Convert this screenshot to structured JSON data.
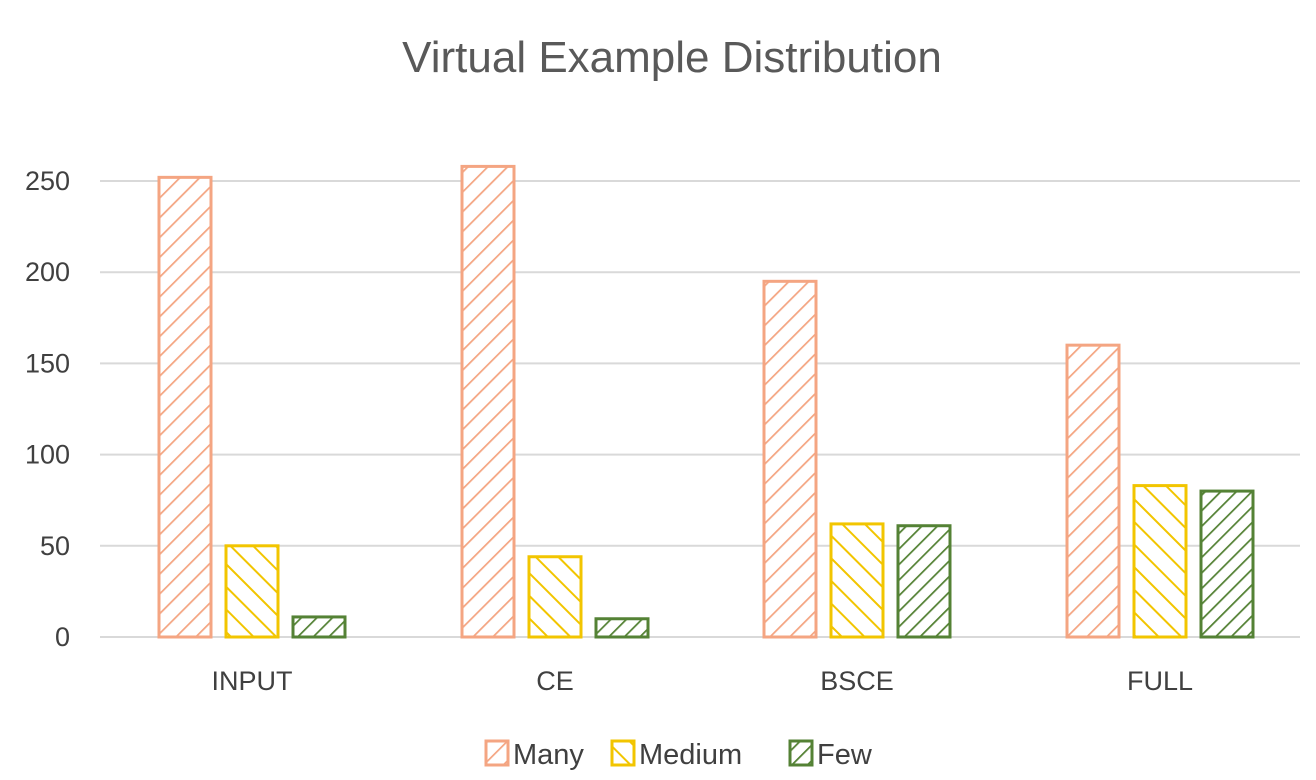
{
  "chart_data": {
    "type": "bar",
    "title": "Virtual Example Distribution",
    "xlabel": "",
    "ylabel": "",
    "categories": [
      "INPUT",
      "CE",
      "BSCE",
      "FULL"
    ],
    "series": [
      {
        "name": "Many",
        "values": [
          252,
          258,
          195,
          160
        ],
        "color": "#f4a582",
        "hatch": "diagonal-down"
      },
      {
        "name": "Medium",
        "values": [
          50,
          44,
          62,
          83
        ],
        "color": "#f2c500",
        "hatch": "diagonal-up"
      },
      {
        "name": "Few",
        "values": [
          11,
          10,
          61,
          80
        ],
        "color": "#548235",
        "hatch": "diagonal-down-dense"
      }
    ],
    "ylim": [
      0,
      250
    ],
    "yticks": [
      "0",
      "50",
      "100",
      "150",
      "200",
      "250"
    ],
    "grid": true,
    "legend_position": "bottom"
  }
}
